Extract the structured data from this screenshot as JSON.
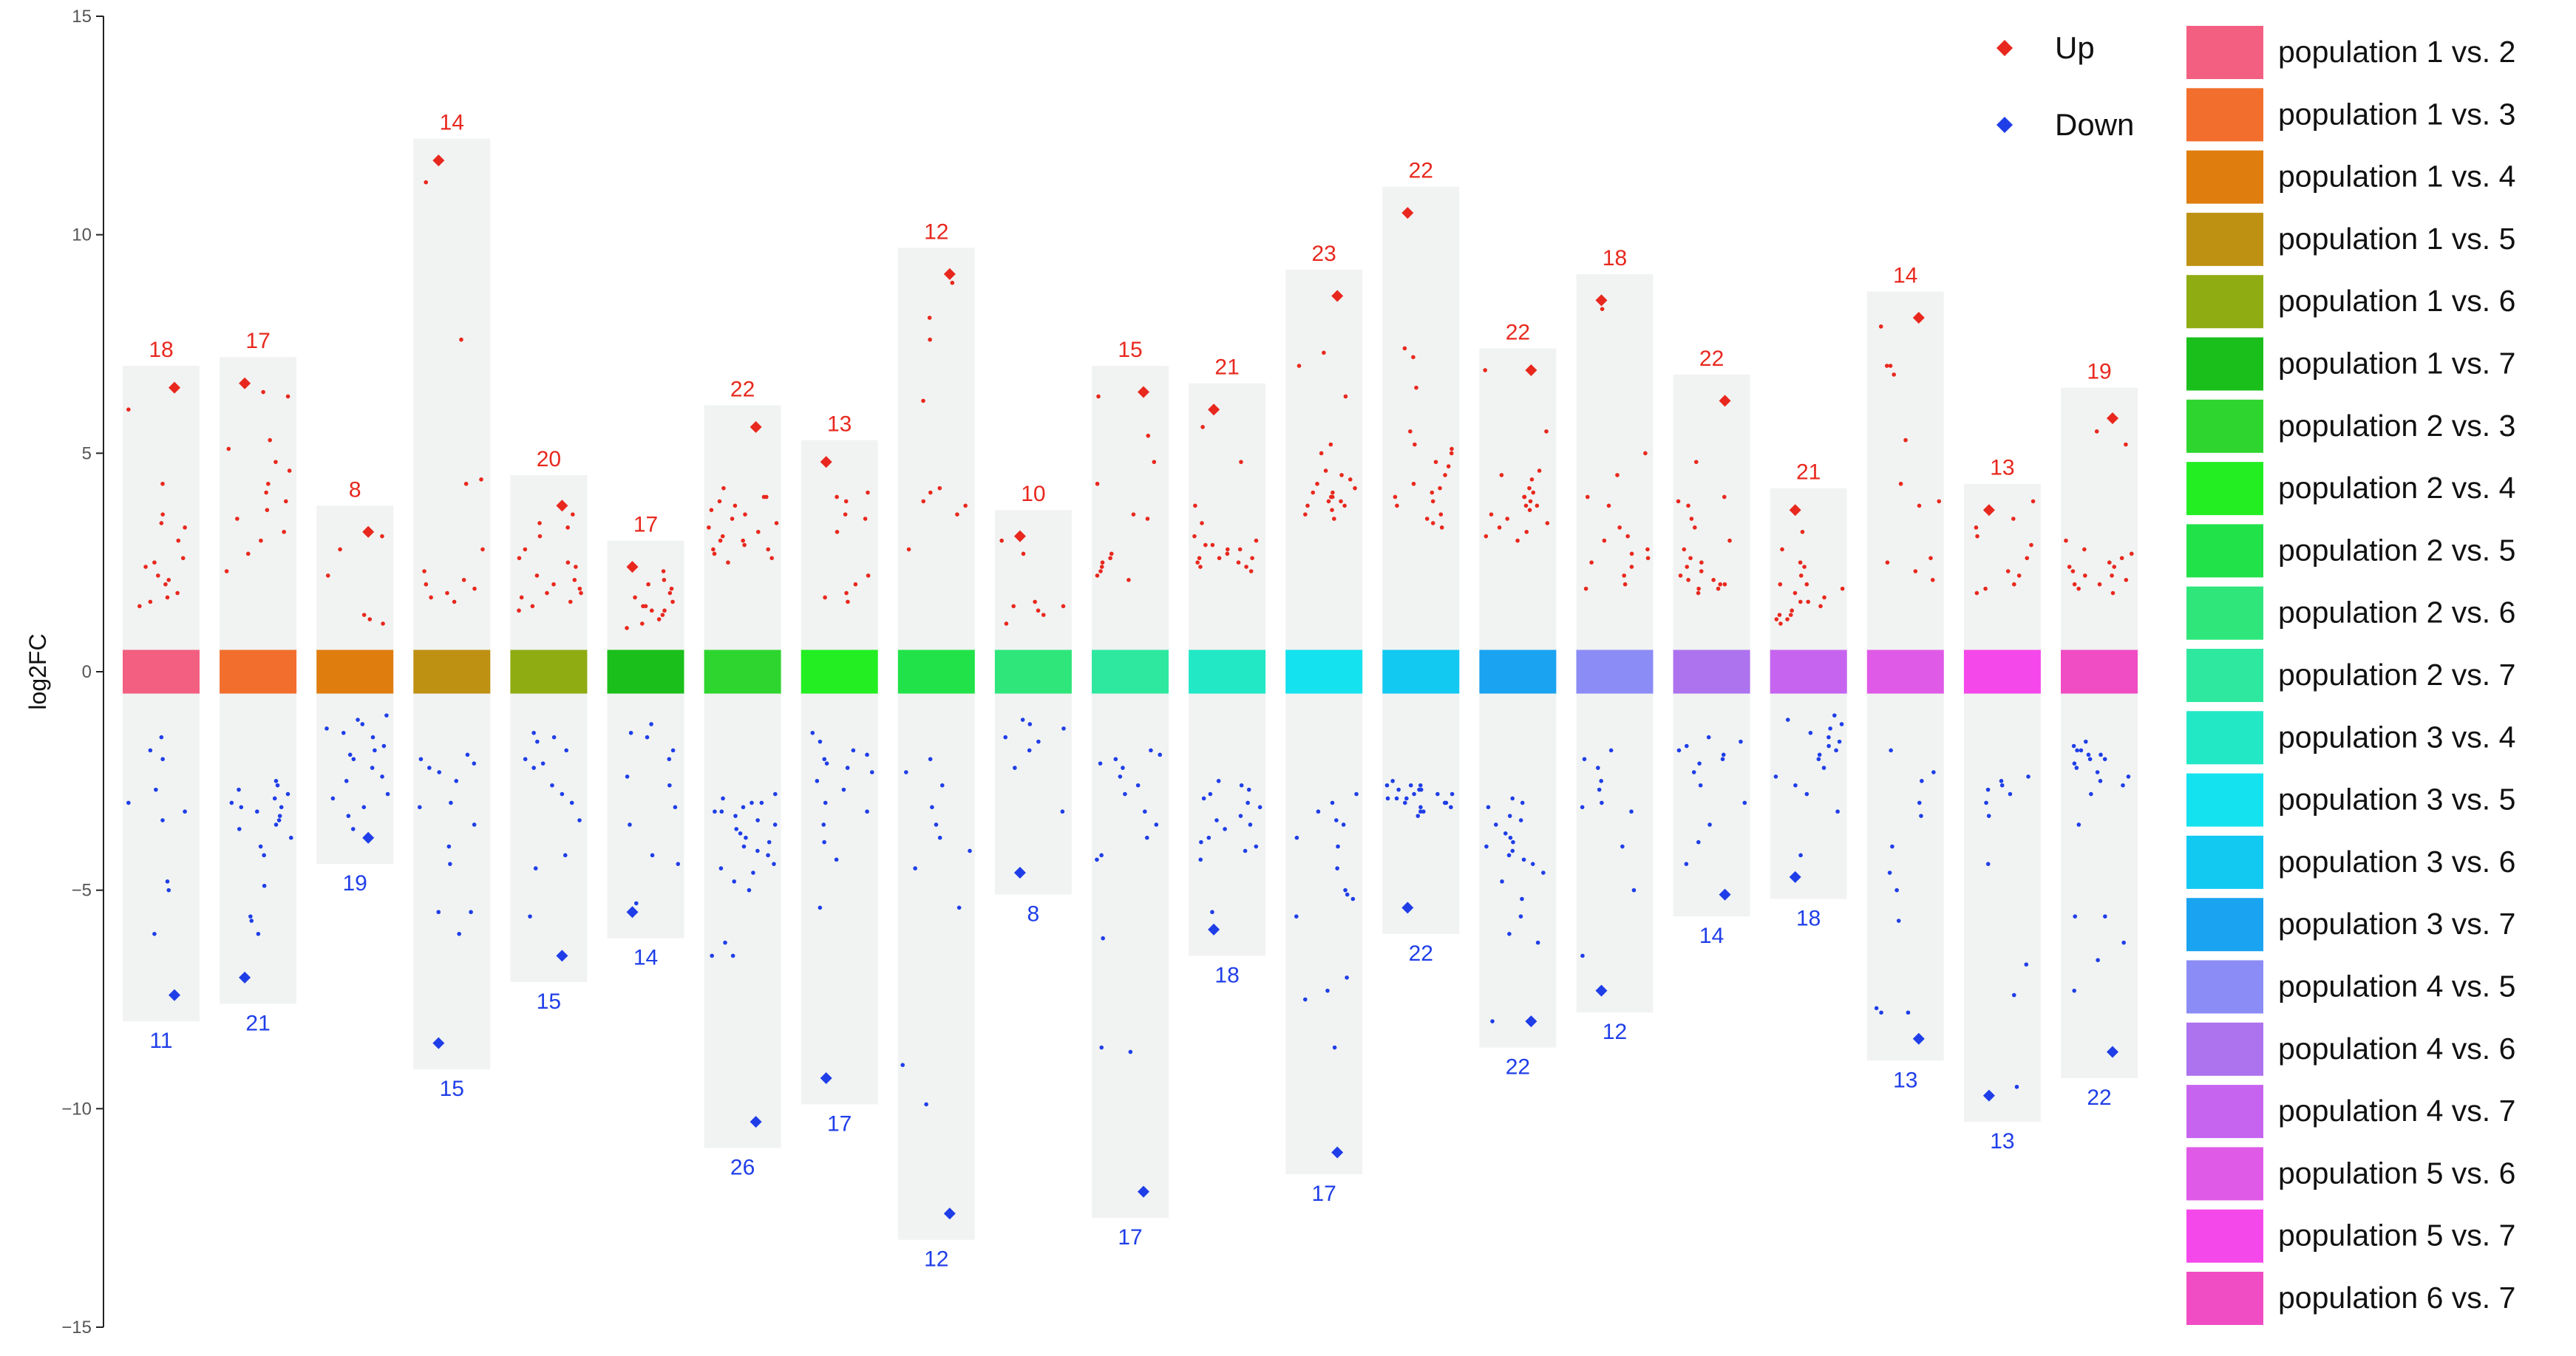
{
  "chart_data": {
    "type": "scatter",
    "ylabel": "log2FC",
    "ylim": [
      -15,
      15
    ],
    "y_ticks": [
      15,
      10,
      5,
      0,
      -5,
      -10,
      -15
    ],
    "y_tick_labels": [
      "15",
      "10",
      "5",
      "0",
      "−5",
      "−10",
      "−15"
    ],
    "grid": false,
    "up_color": "#e8281e",
    "down_color": "#1f3ee8",
    "band_color": "#f1f3f2",
    "legend_markers": [
      {
        "label": "Up",
        "color": "#e8281e"
      },
      {
        "label": "Down",
        "color": "#1f3ee8"
      }
    ],
    "legend_position": "right",
    "categories": [
      {
        "label": "population 1 vs. 2",
        "color": "#f25f80",
        "up_count": "18",
        "down_count": "11",
        "up_max": 7.0,
        "down_min": -8.0
      },
      {
        "label": "population 1 vs. 3",
        "color": "#f26e2d",
        "up_count": "17",
        "down_count": "21",
        "up_max": 7.2,
        "down_min": -7.6
      },
      {
        "label": "population 1 vs. 4",
        "color": "#e07d0f",
        "up_count": "8",
        "down_count": "19",
        "up_max": 3.8,
        "down_min": -4.4
      },
      {
        "label": "population 1 vs. 5",
        "color": "#bf9112",
        "up_count": "14",
        "down_count": "15",
        "up_max": 12.2,
        "down_min": -9.1
      },
      {
        "label": "population 1 vs. 6",
        "color": "#8fac12",
        "up_count": "20",
        "down_count": "15",
        "up_max": 4.5,
        "down_min": -7.1
      },
      {
        "label": "population 1 vs. 7",
        "color": "#1bbf1b",
        "up_count": "17",
        "down_count": "14",
        "up_max": 3.0,
        "down_min": -6.1
      },
      {
        "label": "population 2 vs. 3",
        "color": "#2fd52f",
        "up_count": "22",
        "down_count": "26",
        "up_max": 6.1,
        "down_min": -10.9
      },
      {
        "label": "population 2 vs. 4",
        "color": "#22ee22",
        "up_count": "13",
        "down_count": "17",
        "up_max": 5.3,
        "down_min": -9.9
      },
      {
        "label": "population 2 vs. 5",
        "color": "#22e24a",
        "up_count": "12",
        "down_count": "12",
        "up_max": 9.7,
        "down_min": -13.0
      },
      {
        "label": "population 2 vs. 6",
        "color": "#2ee67a",
        "up_count": "10",
        "down_count": "8",
        "up_max": 3.7,
        "down_min": -5.1
      },
      {
        "label": "population 2 vs. 7",
        "color": "#2ee8a0",
        "up_count": "15",
        "down_count": "17",
        "up_max": 7.0,
        "down_min": -12.5
      },
      {
        "label": "population 3 vs. 4",
        "color": "#22e8c6",
        "up_count": "21",
        "down_count": "18",
        "up_max": 6.6,
        "down_min": -6.5
      },
      {
        "label": "population 3 vs. 5",
        "color": "#14e2ee",
        "up_count": "23",
        "down_count": "17",
        "up_max": 9.2,
        "down_min": -11.5
      },
      {
        "label": "population 3 vs. 6",
        "color": "#12c9f2",
        "up_count": "22",
        "down_count": "22",
        "up_max": 11.1,
        "down_min": -6.0
      },
      {
        "label": "population 3 vs. 7",
        "color": "#1aa3f0",
        "up_count": "22",
        "down_count": "22",
        "up_max": 7.4,
        "down_min": -8.6
      },
      {
        "label": "population 4 vs. 5",
        "color": "#8b8cf5",
        "up_count": "18",
        "down_count": "12",
        "up_max": 9.1,
        "down_min": -7.8
      },
      {
        "label": "population 4 vs. 6",
        "color": "#ad72ee",
        "up_count": "22",
        "down_count": "14",
        "up_max": 6.8,
        "down_min": -5.6
      },
      {
        "label": "population 4 vs. 7",
        "color": "#c664f0",
        "up_count": "21",
        "down_count": "18",
        "up_max": 4.2,
        "down_min": -5.2
      },
      {
        "label": "population 5 vs. 6",
        "color": "#e05ae8",
        "up_count": "14",
        "down_count": "13",
        "up_max": 8.7,
        "down_min": -8.9
      },
      {
        "label": "population 5 vs. 7",
        "color": "#f548ea",
        "up_count": "13",
        "down_count": "13",
        "up_max": 4.3,
        "down_min": -10.3
      },
      {
        "label": "population 6 vs. 7",
        "color": "#f04cc4",
        "up_count": "19",
        "down_count": "22",
        "up_max": 6.5,
        "down_min": -9.3
      }
    ],
    "highlight_up": [
      6.5,
      6.6,
      3.2,
      11.7,
      3.8,
      2.4,
      5.6,
      4.8,
      9.1,
      3.1,
      6.4,
      6.0,
      8.6,
      10.5,
      6.9,
      8.5,
      6.2,
      3.7,
      8.1,
      3.7,
      5.8
    ],
    "highlight_down": [
      -7.4,
      -7.0,
      -3.8,
      -8.5,
      -6.5,
      -5.5,
      -10.3,
      -9.3,
      -12.4,
      -4.6,
      -11.9,
      -5.9,
      -11.0,
      -5.4,
      -8.0,
      -7.3,
      -5.1,
      -4.7,
      -8.4,
      -9.7,
      -8.7
    ],
    "up_values": [
      [
        1.5,
        1.8,
        2.0,
        2.2,
        2.4,
        2.6,
        3.0,
        3.4,
        3.6,
        4.3,
        6.0,
        1.7,
        2.1,
        2.5,
        3.3,
        1.6
      ],
      [
        2.3,
        2.7,
        3.2,
        3.5,
        3.9,
        4.3,
        4.8,
        5.1,
        5.3,
        6.3,
        6.4,
        3.0,
        3.7,
        4.1,
        4.6
      ],
      [
        1.1,
        1.2,
        2.2,
        2.8,
        3.1,
        1.3
      ],
      [
        1.6,
        1.8,
        1.9,
        2.1,
        2.3,
        2.8,
        4.4,
        7.6,
        11.2,
        1.7,
        2.0,
        4.3
      ],
      [
        1.4,
        1.6,
        1.8,
        2.0,
        2.2,
        2.5,
        3.1,
        3.3,
        1.7,
        2.4,
        1.5,
        2.8,
        1.9,
        3.6,
        2.1,
        1.8,
        2.6,
        3.4
      ],
      [
        1.0,
        1.2,
        1.4,
        1.5,
        1.6,
        1.8,
        2.0,
        1.3,
        1.7,
        2.1,
        1.1,
        1.9,
        1.5,
        1.4,
        2.3
      ],
      [
        2.6,
        2.8,
        3.0,
        3.2,
        3.5,
        3.8,
        4.0,
        4.2,
        2.9,
        3.1,
        3.3,
        3.6,
        4.0,
        2.7,
        3.4,
        2.5,
        3.0,
        3.9,
        2.8,
        3.7
      ],
      [
        1.6,
        1.8,
        2.2,
        3.2,
        3.5,
        3.9,
        4.1,
        1.7,
        2.0,
        3.6,
        4.0
      ],
      [
        2.8,
        3.8,
        4.1,
        6.2,
        7.6,
        8.1,
        8.9,
        3.9,
        4.2,
        3.6
      ],
      [
        1.1,
        1.4,
        1.5,
        1.6,
        2.7,
        3.0,
        1.3,
        1.5
      ],
      [
        2.2,
        2.6,
        3.6,
        4.8,
        5.4,
        6.3,
        2.4,
        3.5,
        2.1,
        2.7,
        2.5,
        2.3,
        4.3
      ],
      [
        2.4,
        2.6,
        2.8,
        3.0,
        2.5,
        2.7,
        2.9,
        3.1,
        3.8,
        4.8,
        5.6,
        2.5,
        2.3,
        2.6,
        3.4,
        2.8,
        2.6,
        2.9,
        2.4
      ],
      [
        3.5,
        3.8,
        4.0,
        4.2,
        4.4,
        3.6,
        3.9,
        4.5,
        4.1,
        3.7,
        5.2,
        6.3,
        7.0,
        7.3,
        3.8,
        4.0,
        4.6,
        3.9,
        4.3,
        4.1,
        5.0
      ],
      [
        3.3,
        3.5,
        3.8,
        4.0,
        4.2,
        4.5,
        5.0,
        5.2,
        6.5,
        7.2,
        7.4,
        3.4,
        3.9,
        4.3,
        4.8,
        5.1,
        3.6,
        4.1,
        4.7,
        5.5
      ],
      [
        3.0,
        3.3,
        3.5,
        3.8,
        4.0,
        4.2,
        4.5,
        3.2,
        3.6,
        3.9,
        4.4,
        3.1,
        3.7,
        4.1,
        4.6,
        5.5,
        3.4,
        3.8,
        4.0,
        6.9
      ],
      [
        2.2,
        2.5,
        2.8,
        3.1,
        3.8,
        4.0,
        5.0,
        8.3,
        2.7,
        2.0,
        3.3,
        4.5,
        1.9,
        2.4,
        2.6,
        3.0
      ],
      [
        1.9,
        2.0,
        2.2,
        2.5,
        2.8,
        3.3,
        3.8,
        4.8,
        2.1,
        2.4,
        3.0,
        1.8,
        2.6,
        3.5,
        4.0,
        2.3,
        2.0,
        1.9,
        3.9,
        2.1
      ],
      [
        1.2,
        1.4,
        1.6,
        1.8,
        2.0,
        2.2,
        2.5,
        1.1,
        1.3,
        1.5,
        1.7,
        2.8,
        3.2,
        1.9,
        2.4,
        1.3,
        1.6,
        2.0,
        1.2
      ],
      [
        2.1,
        2.3,
        2.6,
        3.8,
        4.3,
        5.3,
        7.0,
        7.9,
        6.8,
        2.5,
        3.9,
        7.0
      ],
      [
        1.8,
        2.0,
        2.3,
        2.6,
        3.1,
        3.5,
        3.9,
        2.2,
        2.9,
        3.3,
        1.9
      ],
      [
        1.8,
        2.0,
        2.1,
        2.3,
        2.5,
        2.8,
        5.2,
        5.5,
        2.2,
        2.4,
        2.6,
        1.9,
        2.7,
        3.0,
        2.4,
        2.2,
        2.0
      ]
    ],
    "down_values": [
      [
        -1.5,
        -2.0,
        -3.4,
        -3.0,
        -4.8,
        -5.0,
        -6.0,
        -3.2,
        -1.8,
        -2.7
      ],
      [
        -2.8,
        -3.0,
        -3.3,
        -3.5,
        -3.8,
        -2.6,
        -3.1,
        -4.2,
        -5.6,
        -6.0,
        -3.2,
        -2.9,
        -3.6,
        -4.9,
        -5.7,
        -2.7,
        -3.4,
        -4.0,
        -2.5,
        -3.1
      ],
      [
        -1.0,
        -1.2,
        -1.4,
        -1.8,
        -2.0,
        -2.5,
        -2.8,
        -3.1,
        -1.1,
        -1.5,
        -2.2,
        -3.6,
        -1.3,
        -1.7,
        -2.4,
        -2.9,
        -1.9,
        -3.3
      ],
      [
        -2.0,
        -2.2,
        -2.5,
        -3.0,
        -3.5,
        -4.0,
        -5.5,
        -5.5,
        -6.0,
        -2.3,
        -2.1,
        -4.4,
        -3.1,
        -1.9
      ],
      [
        -1.4,
        -1.6,
        -2.0,
        -2.2,
        -2.8,
        -3.4,
        -4.2,
        -4.5,
        -5.6,
        -1.5,
        -2.1,
        -2.6,
        -1.8,
        -3.0
      ],
      [
        -1.2,
        -1.5,
        -2.0,
        -2.6,
        -3.5,
        -4.2,
        -4.4,
        -5.3,
        -5.5,
        -1.8,
        -2.4,
        -1.4,
        -3.1
      ],
      [
        -2.8,
        -3.0,
        -3.2,
        -3.4,
        -3.6,
        -3.8,
        -4.0,
        -4.2,
        -4.5,
        -5.0,
        -3.1,
        -3.3,
        -3.5,
        -3.9,
        -4.4,
        -2.9,
        -3.7,
        -4.1,
        -4.8,
        -6.5,
        -6.5,
        -6.2,
        -3.0,
        -3.2,
        -4.6
      ],
      [
        -1.4,
        -1.8,
        -2.0,
        -2.2,
        -2.5,
        -3.0,
        -3.5,
        -3.9,
        -4.3,
        -5.4,
        -1.9,
        -2.3,
        -2.1,
        -2.7,
        -3.2,
        -1.6
      ],
      [
        -2.0,
        -2.6,
        -3.5,
        -3.8,
        -4.5,
        -5.4,
        -9.0,
        -9.9,
        -2.3,
        -4.1,
        -3.1
      ],
      [
        -1.2,
        -1.5,
        -1.8,
        -2.2,
        -3.2,
        -1.3,
        -1.6,
        -1.1
      ],
      [
        -1.8,
        -2.0,
        -2.2,
        -2.4,
        -2.8,
        -3.2,
        -3.8,
        -4.2,
        -6.1,
        -8.6,
        -2.6,
        -2.1,
        -3.5,
        -4.3,
        -1.9,
        -8.7
      ],
      [
        -2.5,
        -2.8,
        -3.0,
        -3.3,
        -3.8,
        -4.0,
        -4.3,
        -5.5,
        -2.6,
        -3.5,
        -3.6,
        -3.9,
        -3.1,
        -2.9,
        -4.1,
        -2.7,
        -3.4
      ],
      [
        -2.8,
        -3.2,
        -3.5,
        -3.8,
        -4.5,
        -5.0,
        -5.2,
        -5.6,
        -7.0,
        -7.3,
        -7.5,
        -8.6,
        -3.0,
        -3.4,
        -4.0,
        -5.1
      ],
      [
        -2.6,
        -2.8,
        -3.0,
        -3.2,
        -2.7,
        -2.9,
        -3.1,
        -3.3,
        -2.5,
        -2.6,
        -2.8,
        -3.0,
        -2.7,
        -2.9,
        -2.6,
        -3.2,
        -2.8,
        -3.1,
        -2.9,
        -3.0,
        -2.7
      ],
      [
        -2.9,
        -3.1,
        -3.4,
        -3.7,
        -4.0,
        -4.3,
        -4.6,
        -5.2,
        -6.0,
        -3.0,
        -3.5,
        -3.9,
        -4.1,
        -4.4,
        -4.8,
        -5.6,
        -6.2,
        -3.3,
        -3.8,
        -4.2,
        -8.0
      ],
      [
        -2.0,
        -2.2,
        -2.5,
        -3.0,
        -3.2,
        -4.0,
        -5.0,
        -6.5,
        -1.8,
        -2.7,
        -3.1
      ],
      [
        -1.6,
        -1.8,
        -2.0,
        -2.3,
        -2.6,
        -3.0,
        -3.5,
        -3.9,
        -4.4,
        -1.7,
        -1.5,
        -2.1,
        -1.9
      ],
      [
        -1.0,
        -1.2,
        -1.4,
        -1.8,
        -2.0,
        -2.2,
        -2.6,
        -3.2,
        -4.2,
        -1.1,
        -1.5,
        -1.3,
        -1.7,
        -2.4,
        -1.6,
        -1.9,
        -2.8
      ],
      [
        -1.8,
        -2.5,
        -3.0,
        -4.0,
        -5.0,
        -5.7,
        -7.8,
        -7.8,
        -2.3,
        -3.3,
        -7.7,
        -4.6
      ],
      [
        -2.4,
        -2.6,
        -2.8,
        -3.0,
        -3.3,
        -4.4,
        -6.7,
        -7.4,
        -9.5,
        -2.7,
        -2.5
      ],
      [
        -1.6,
        -1.8,
        -2.0,
        -2.2,
        -2.5,
        -2.8,
        -3.5,
        -5.6,
        -6.2,
        -7.3,
        -1.7,
        -1.9,
        -2.1,
        -2.4,
        -5.6,
        -6.6,
        -1.8,
        -2.3,
        -2.0,
        -1.9,
        -2.6
      ]
    ]
  }
}
